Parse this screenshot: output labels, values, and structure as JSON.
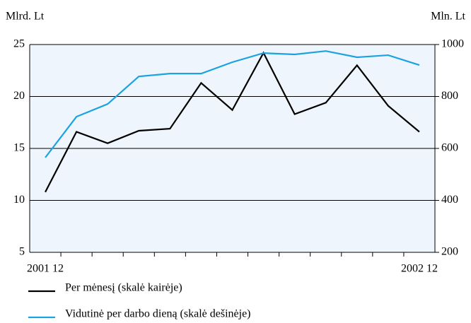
{
  "chart_data": {
    "type": "line",
    "y_label": "Mlrd. Lt",
    "y2_label": "Mln. Lt",
    "categories": [
      "2001 12",
      null,
      null,
      null,
      null,
      null,
      null,
      null,
      null,
      null,
      null,
      null,
      "2002 12"
    ],
    "series": [
      {
        "name": "Per mėnesį (skalė kairėje)",
        "color": "#000000",
        "values": [
          10.8,
          16.6,
          15.5,
          16.7,
          16.9,
          21.3,
          18.7,
          24.2,
          18.3,
          19.4,
          23.0,
          19.1,
          16.6
        ]
      },
      {
        "name": "Vidutinė per darbo dieną (skalė dešinėje)",
        "color": "#1aa3e0",
        "axis": "y2",
        "values": [
          565,
          722,
          771,
          877,
          888,
          888,
          932,
          967,
          962,
          975,
          951,
          959,
          921
        ]
      }
    ],
    "ylim": [
      5,
      25
    ],
    "yticks": [
      5,
      10,
      15,
      20,
      25
    ],
    "y2lim": [
      200,
      1000
    ],
    "y2ticks": [
      200,
      400,
      600,
      800,
      1000
    ],
    "grid": true
  }
}
